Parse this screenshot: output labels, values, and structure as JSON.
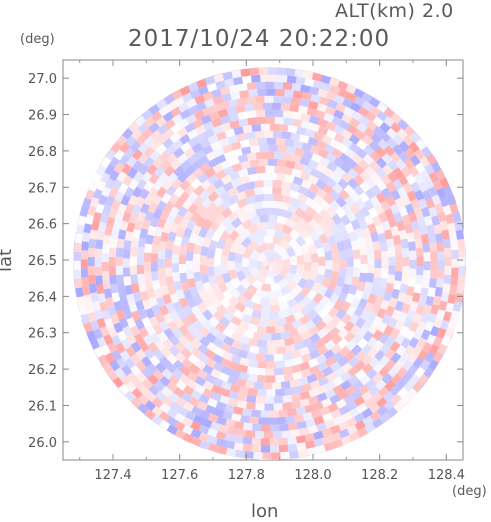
{
  "chart_data": {
    "type": "heatmap",
    "title": "2017/10/24 20:22:00",
    "subtitle": "ALT(km) 2.0",
    "xlabel": "lon",
    "ylabel": "lat",
    "x_unit": "(deg)",
    "y_unit": "(deg)",
    "xlim": [
      127.25,
      128.45
    ],
    "ylim": [
      25.95,
      27.05
    ],
    "x_ticks": [
      "127.4",
      "127.6",
      "127.8",
      "128.0",
      "128.2",
      "128.4"
    ],
    "y_ticks": [
      "26.0",
      "26.1",
      "26.2",
      "26.3",
      "26.4",
      "26.5",
      "26.6",
      "26.7",
      "26.8",
      "26.9",
      "27.0"
    ],
    "center": {
      "lon": 127.87,
      "lat": 26.49
    },
    "radius_deg_lat": 0.54,
    "colormap": {
      "negative": "#9999ff",
      "zero": "#ffffff",
      "positive": "#ff8c8c"
    },
    "grid": false,
    "legend": "none"
  }
}
